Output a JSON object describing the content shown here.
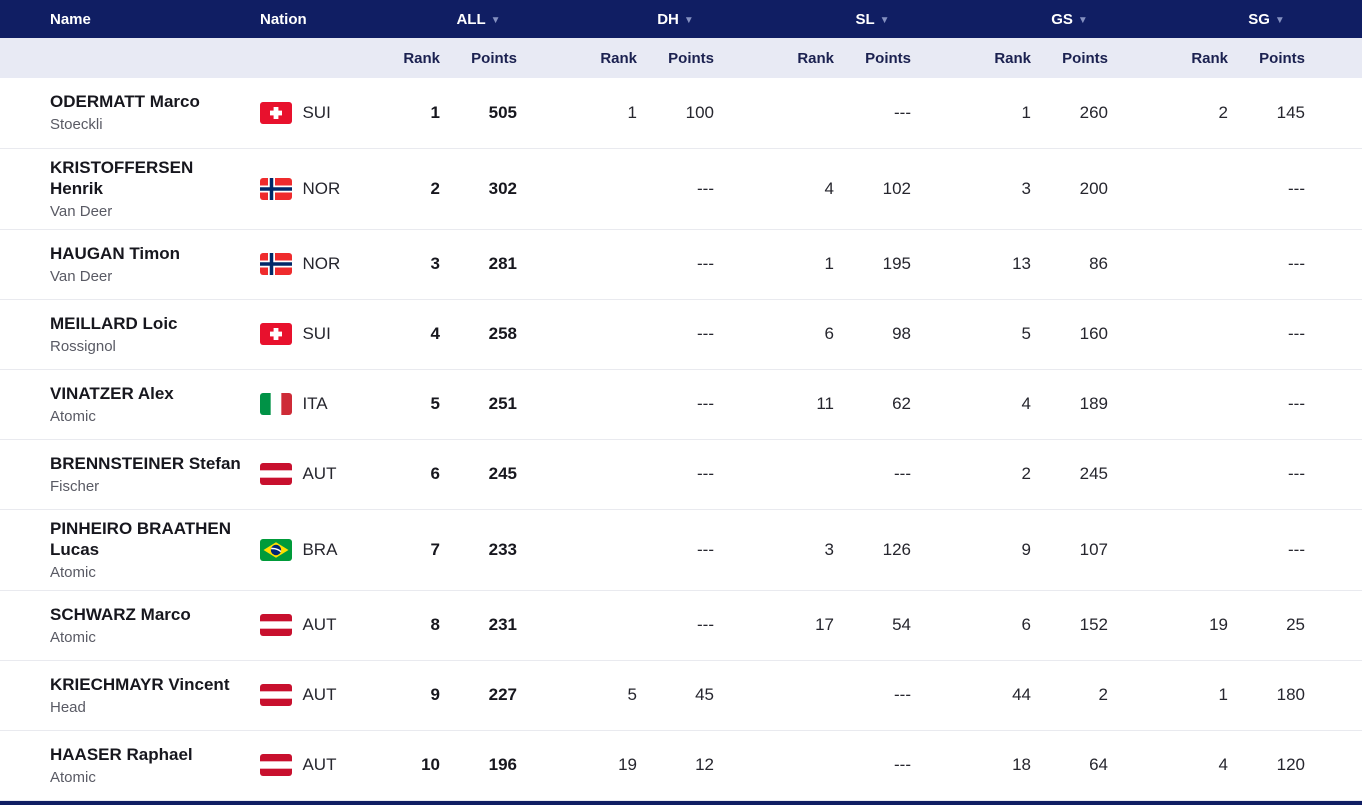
{
  "table": {
    "header": {
      "name": "Name",
      "nation": "Nation"
    },
    "sort_icon": "▼",
    "groups": [
      {
        "key": "all",
        "label": "ALL"
      },
      {
        "key": "dh",
        "label": "DH"
      },
      {
        "key": "sl",
        "label": "SL"
      },
      {
        "key": "gs",
        "label": "GS"
      },
      {
        "key": "sg",
        "label": "SG"
      }
    ],
    "subheader": {
      "rank": "Rank",
      "points": "Points"
    },
    "empty_value": "---",
    "rows": [
      {
        "name": "ODERMATT Marco",
        "brand": "Stoeckli",
        "nation": "SUI",
        "results": {
          "all": {
            "rank": "1",
            "points": "505"
          },
          "dh": {
            "rank": "1",
            "points": "100"
          },
          "sl": {
            "rank": "",
            "points": "---"
          },
          "gs": {
            "rank": "1",
            "points": "260"
          },
          "sg": {
            "rank": "2",
            "points": "145"
          }
        }
      },
      {
        "name": "KRISTOFFERSEN Henrik",
        "brand": "Van Deer",
        "nation": "NOR",
        "results": {
          "all": {
            "rank": "2",
            "points": "302"
          },
          "dh": {
            "rank": "",
            "points": "---"
          },
          "sl": {
            "rank": "4",
            "points": "102"
          },
          "gs": {
            "rank": "3",
            "points": "200"
          },
          "sg": {
            "rank": "",
            "points": "---"
          }
        }
      },
      {
        "name": "HAUGAN Timon",
        "brand": "Van Deer",
        "nation": "NOR",
        "results": {
          "all": {
            "rank": "3",
            "points": "281"
          },
          "dh": {
            "rank": "",
            "points": "---"
          },
          "sl": {
            "rank": "1",
            "points": "195"
          },
          "gs": {
            "rank": "13",
            "points": "86"
          },
          "sg": {
            "rank": "",
            "points": "---"
          }
        }
      },
      {
        "name": "MEILLARD Loic",
        "brand": "Rossignol",
        "nation": "SUI",
        "results": {
          "all": {
            "rank": "4",
            "points": "258"
          },
          "dh": {
            "rank": "",
            "points": "---"
          },
          "sl": {
            "rank": "6",
            "points": "98"
          },
          "gs": {
            "rank": "5",
            "points": "160"
          },
          "sg": {
            "rank": "",
            "points": "---"
          }
        }
      },
      {
        "name": "VINATZER Alex",
        "brand": "Atomic",
        "nation": "ITA",
        "results": {
          "all": {
            "rank": "5",
            "points": "251"
          },
          "dh": {
            "rank": "",
            "points": "---"
          },
          "sl": {
            "rank": "11",
            "points": "62"
          },
          "gs": {
            "rank": "4",
            "points": "189"
          },
          "sg": {
            "rank": "",
            "points": "---"
          }
        }
      },
      {
        "name": "BRENNSTEINER Stefan",
        "brand": "Fischer",
        "nation": "AUT",
        "results": {
          "all": {
            "rank": "6",
            "points": "245"
          },
          "dh": {
            "rank": "",
            "points": "---"
          },
          "sl": {
            "rank": "",
            "points": "---"
          },
          "gs": {
            "rank": "2",
            "points": "245"
          },
          "sg": {
            "rank": "",
            "points": "---"
          }
        }
      },
      {
        "name": "PINHEIRO BRAATHEN Lucas",
        "brand": "Atomic",
        "nation": "BRA",
        "results": {
          "all": {
            "rank": "7",
            "points": "233"
          },
          "dh": {
            "rank": "",
            "points": "---"
          },
          "sl": {
            "rank": "3",
            "points": "126"
          },
          "gs": {
            "rank": "9",
            "points": "107"
          },
          "sg": {
            "rank": "",
            "points": "---"
          }
        }
      },
      {
        "name": "SCHWARZ Marco",
        "brand": "Atomic",
        "nation": "AUT",
        "results": {
          "all": {
            "rank": "8",
            "points": "231"
          },
          "dh": {
            "rank": "",
            "points": "---"
          },
          "sl": {
            "rank": "17",
            "points": "54"
          },
          "gs": {
            "rank": "6",
            "points": "152"
          },
          "sg": {
            "rank": "19",
            "points": "25"
          }
        }
      },
      {
        "name": "KRIECHMAYR Vincent",
        "brand": "Head",
        "nation": "AUT",
        "results": {
          "all": {
            "rank": "9",
            "points": "227"
          },
          "dh": {
            "rank": "5",
            "points": "45"
          },
          "sl": {
            "rank": "",
            "points": "---"
          },
          "gs": {
            "rank": "44",
            "points": "2"
          },
          "sg": {
            "rank": "1",
            "points": "180"
          }
        }
      },
      {
        "name": "HAASER Raphael",
        "brand": "Atomic",
        "nation": "AUT",
        "results": {
          "all": {
            "rank": "10",
            "points": "196"
          },
          "dh": {
            "rank": "19",
            "points": "12"
          },
          "sl": {
            "rank": "",
            "points": "---"
          },
          "gs": {
            "rank": "18",
            "points": "64"
          },
          "sg": {
            "rank": "4",
            "points": "120"
          }
        }
      }
    ]
  },
  "colors": {
    "header_bg": "#101e63",
    "header_text": "#ffffff",
    "sort_icon": "#8591c1",
    "subheader_bg": "#e8eaf4",
    "subheader_text": "#1b2150",
    "row_divider": "#e9eaef",
    "name_text": "#17171e",
    "brand_text": "#595a64"
  }
}
